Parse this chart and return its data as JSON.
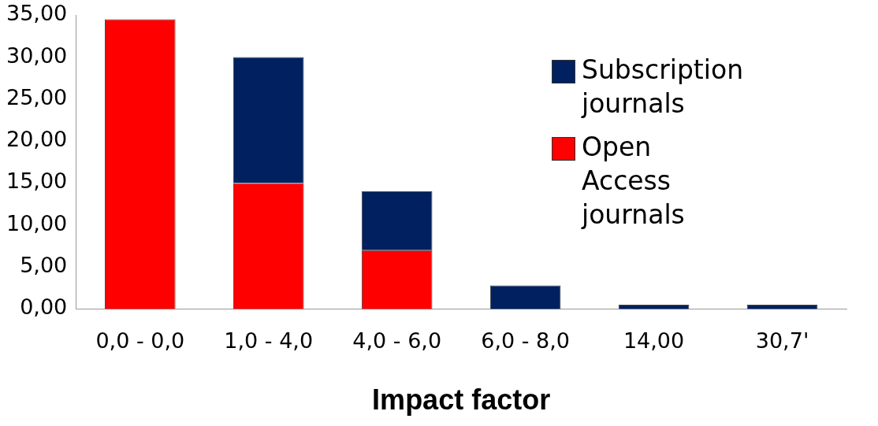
{
  "chart_data": {
    "type": "bar",
    "stacked": true,
    "xlabel": "Impact factor",
    "categories": [
      "0,0 - 0,0",
      "1,0 - 4,0",
      "4,0 - 6,0",
      "6,0 - 8,0",
      "14,00",
      "30,7'"
    ],
    "series": [
      {
        "name": "Open Access journals",
        "color": "#ff0000",
        "values": [
          34.5,
          15,
          7,
          0,
          0,
          0
        ]
      },
      {
        "name": "Subscription journals",
        "color": "#002060",
        "values": [
          0,
          15,
          7,
          2.8,
          0.5,
          0.5
        ]
      }
    ],
    "ylim": [
      0,
      35
    ],
    "yticks": [
      {
        "value": 0,
        "label": "0,00"
      },
      {
        "value": 5,
        "label": "5,00"
      },
      {
        "value": 10,
        "label": "10,00"
      },
      {
        "value": 15,
        "label": "15,00"
      },
      {
        "value": 20,
        "label": "20,00"
      },
      {
        "value": 25,
        "label": "25,00"
      },
      {
        "value": 30,
        "label": "30,00"
      },
      {
        "value": 35,
        "label": "35,00"
      }
    ],
    "grid": false,
    "legend": "top right"
  }
}
